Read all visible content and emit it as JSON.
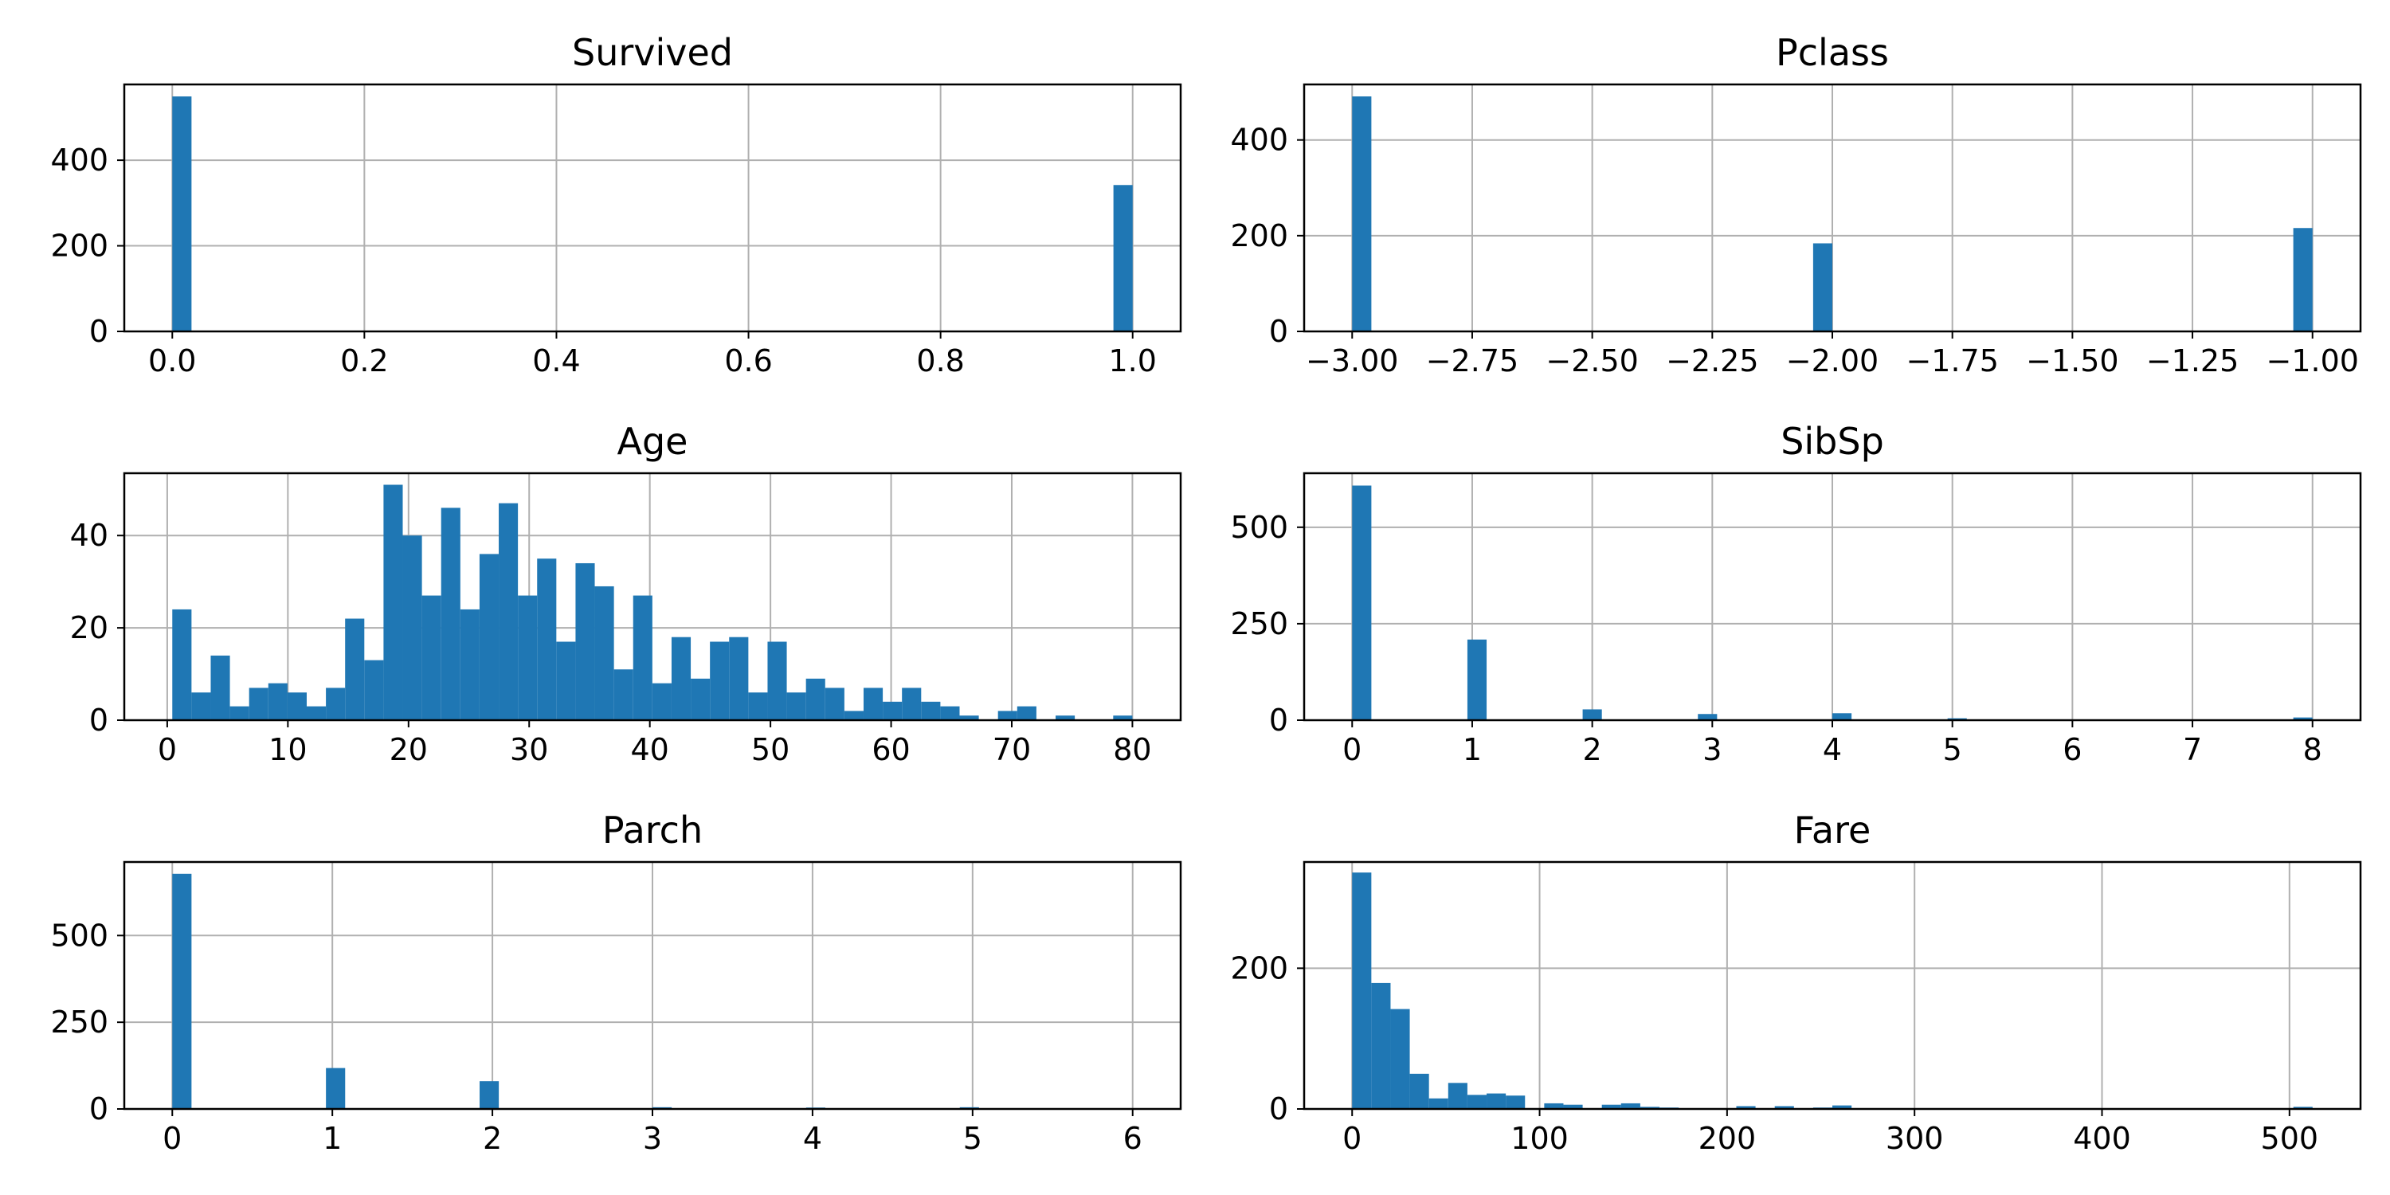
{
  "style": {
    "bar_color": "#1f77b4",
    "grid_color": "#b0b0b0",
    "background": "#ffffff"
  },
  "chart_data": [
    {
      "type": "bar",
      "title": "Survived",
      "grid": true,
      "xlim": [
        -0.05,
        1.05
      ],
      "ylim": [
        0,
        577
      ],
      "xticks": [
        0.0,
        0.2,
        0.4,
        0.6,
        0.8,
        1.0
      ],
      "xtick_labels": [
        "0.0",
        "0.2",
        "0.4",
        "0.6",
        "0.8",
        "1.0"
      ],
      "yticks": [
        0,
        200,
        400
      ],
      "ytick_labels": [
        "0",
        "200",
        "400"
      ],
      "bin_width": 0.02,
      "bins": [
        {
          "x": 0.0,
          "value": 549
        },
        {
          "x": 0.98,
          "value": 342
        }
      ]
    },
    {
      "type": "bar",
      "title": "Pclass",
      "grid": true,
      "xlim": [
        -3.1,
        -0.9
      ],
      "ylim": [
        0,
        516
      ],
      "xticks": [
        -3.0,
        -2.75,
        -2.5,
        -2.25,
        -2.0,
        -1.75,
        -1.5,
        -1.25,
        -1.0
      ],
      "xtick_labels": [
        "−3.00",
        "−2.75",
        "−2.50",
        "−2.25",
        "−2.00",
        "−1.75",
        "−1.50",
        "−1.25",
        "−1.00"
      ],
      "yticks": [
        0,
        200,
        400
      ],
      "ytick_labels": [
        "0",
        "200",
        "400"
      ],
      "bin_width": 0.04,
      "bins": [
        {
          "x": -3.0,
          "value": 491
        },
        {
          "x": -2.04,
          "value": 184
        },
        {
          "x": -1.04,
          "value": 216
        }
      ]
    },
    {
      "type": "bar",
      "title": "Age",
      "grid": true,
      "xlim": [
        -3.56,
        84.0
      ],
      "ylim": [
        0,
        53.5
      ],
      "xticks": [
        0,
        10,
        20,
        30,
        40,
        50,
        60,
        70,
        80
      ],
      "xtick_labels": [
        "0",
        "10",
        "20",
        "30",
        "40",
        "50",
        "60",
        "70",
        "80"
      ],
      "yticks": [
        0,
        20,
        40
      ],
      "ytick_labels": [
        "0",
        "20",
        "40"
      ],
      "bin_start": 0.42,
      "bin_width": 1.5916,
      "counts": [
        24,
        6,
        14,
        3,
        7,
        8,
        6,
        3,
        7,
        22,
        13,
        51,
        40,
        27,
        46,
        24,
        36,
        47,
        27,
        35,
        17,
        34,
        29,
        11,
        27,
        8,
        18,
        9,
        17,
        18,
        6,
        17,
        6,
        9,
        7,
        2,
        7,
        4,
        7,
        4,
        3,
        1,
        0,
        2,
        3,
        0,
        1,
        0,
        0,
        1
      ]
    },
    {
      "type": "bar",
      "title": "SibSp",
      "grid": true,
      "xlim": [
        -0.4,
        8.4
      ],
      "ylim": [
        0,
        640
      ],
      "xticks": [
        0,
        1,
        2,
        3,
        4,
        5,
        6,
        7,
        8
      ],
      "xtick_labels": [
        "0",
        "1",
        "2",
        "3",
        "4",
        "5",
        "6",
        "7",
        "8"
      ],
      "yticks": [
        0,
        250,
        500
      ],
      "ytick_labels": [
        "0",
        "250",
        "500"
      ],
      "bin_width": 0.16,
      "bins": [
        {
          "x": 0.0,
          "value": 608
        },
        {
          "x": 0.96,
          "value": 209
        },
        {
          "x": 1.92,
          "value": 28
        },
        {
          "x": 2.88,
          "value": 16
        },
        {
          "x": 4.0,
          "value": 18
        },
        {
          "x": 4.96,
          "value": 5
        },
        {
          "x": 7.84,
          "value": 7
        }
      ]
    },
    {
      "type": "bar",
      "title": "Parch",
      "grid": true,
      "xlim": [
        -0.3,
        6.3
      ],
      "ylim": [
        0,
        712
      ],
      "xticks": [
        0,
        1,
        2,
        3,
        4,
        5,
        6
      ],
      "xtick_labels": [
        "0",
        "1",
        "2",
        "3",
        "4",
        "5",
        "6"
      ],
      "yticks": [
        0,
        250,
        500
      ],
      "ytick_labels": [
        "0",
        "250",
        "500"
      ],
      "bin_width": 0.12,
      "bins": [
        {
          "x": 0.0,
          "value": 678
        },
        {
          "x": 0.96,
          "value": 118
        },
        {
          "x": 1.92,
          "value": 80
        },
        {
          "x": 3.0,
          "value": 5
        },
        {
          "x": 3.96,
          "value": 4
        },
        {
          "x": 4.92,
          "value": 5
        },
        {
          "x": 6.0,
          "value": 1
        }
      ]
    },
    {
      "type": "bar",
      "title": "Fare",
      "grid": true,
      "xlim": [
        -25.6,
        537.9
      ],
      "ylim": [
        0,
        351
      ],
      "xticks": [
        0,
        100,
        200,
        300,
        400,
        500
      ],
      "xtick_labels": [
        "0",
        "100",
        "200",
        "300",
        "400",
        "500"
      ],
      "yticks": [
        0,
        200
      ],
      "ytick_labels": [
        "0",
        "200"
      ],
      "bin_start": 0,
      "bin_width": 10.2466,
      "counts": [
        336,
        179,
        142,
        50,
        15,
        37,
        20,
        22,
        19,
        0,
        8,
        6,
        0,
        6,
        8,
        3,
        2,
        0,
        0,
        0,
        4,
        0,
        4,
        0,
        2,
        5,
        0,
        0,
        0,
        0,
        0,
        0,
        0,
        0,
        0,
        0,
        0,
        0,
        0,
        0,
        0,
        0,
        0,
        0,
        0,
        0,
        0,
        0,
        0,
        3
      ]
    }
  ]
}
